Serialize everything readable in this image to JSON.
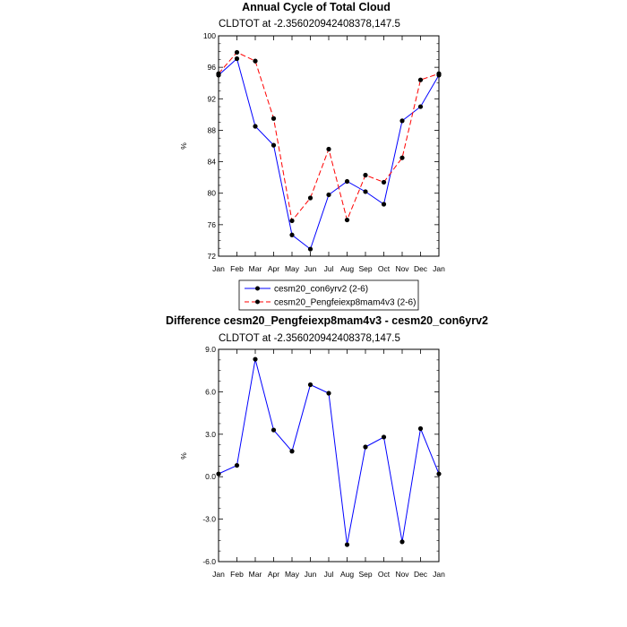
{
  "chart_data": [
    {
      "type": "line",
      "title": "Annual Cycle of Total Cloud",
      "subtitle": "CLDTOT at -2.356020942408378,147.5",
      "ylabel": "%",
      "ylim": [
        72,
        100
      ],
      "yticks": [
        72,
        76,
        80,
        84,
        88,
        92,
        96,
        100
      ],
      "ytick_labels": [
        "72",
        "76",
        "80",
        "84",
        "88",
        "92",
        "96",
        "100"
      ],
      "categories": [
        "Jan",
        "Feb",
        "Mar",
        "Apr",
        "May",
        "Jun",
        "Jul",
        "Aug",
        "Sep",
        "Oct",
        "Nov",
        "Dec",
        "Jan"
      ],
      "series": [
        {
          "name": "cesm20_con6yrv2 (2-6)",
          "color": "#0000ff",
          "dash": "solid",
          "values": [
            95.0,
            97.1,
            88.5,
            86.1,
            74.7,
            72.9,
            79.8,
            81.5,
            80.2,
            78.6,
            89.2,
            91.0,
            95.0
          ]
        },
        {
          "name": "cesm20_Pengfeiexp8mam4v3 (2-6)",
          "color": "#ff0000",
          "dash": "dashed",
          "values": [
            95.2,
            97.9,
            96.8,
            89.5,
            76.5,
            79.4,
            85.6,
            76.6,
            82.3,
            81.4,
            84.5,
            94.4,
            95.2
          ]
        }
      ],
      "legend": "bottom"
    },
    {
      "type": "line",
      "title": "Difference cesm20_Pengfeiexp8mam4v3 - cesm20_con6yrv2",
      "subtitle": "CLDTOT at -2.356020942408378,147.5",
      "ylabel": "%",
      "ylim": [
        -6.0,
        9.0
      ],
      "yticks": [
        -6,
        -3,
        0,
        3,
        6,
        9
      ],
      "ytick_labels": [
        "-6.0",
        "-3.0",
        "0.0",
        "3.0",
        "6.0",
        "9.0"
      ],
      "categories": [
        "Jan",
        "Feb",
        "Mar",
        "Apr",
        "May",
        "Jun",
        "Jul",
        "Aug",
        "Sep",
        "Oct",
        "Nov",
        "Dec",
        "Jan"
      ],
      "series": [
        {
          "color": "#0000ff",
          "dash": "solid",
          "values": [
            0.2,
            0.8,
            8.3,
            3.3,
            1.8,
            6.5,
            5.9,
            -4.8,
            2.1,
            2.8,
            -4.6,
            3.4,
            0.2
          ]
        }
      ]
    }
  ]
}
